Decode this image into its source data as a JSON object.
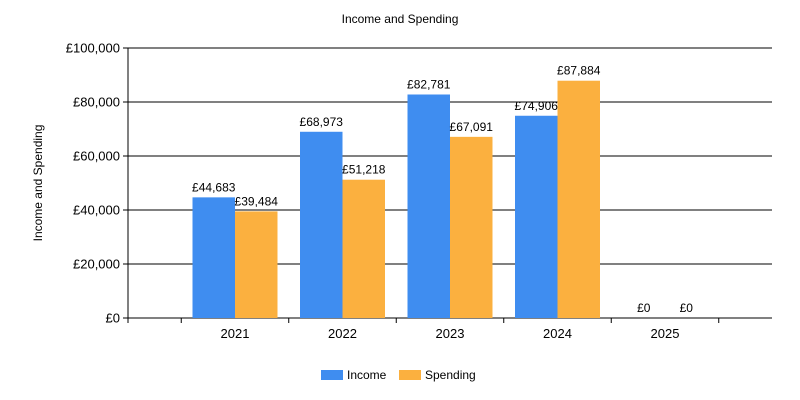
{
  "chart_data": {
    "type": "bar",
    "title": "Income and Spending",
    "xlabel": "",
    "ylabel": "Income and Spending",
    "categories": [
      "2021",
      "2022",
      "2023",
      "2024",
      "2025"
    ],
    "series": [
      {
        "name": "Income",
        "color": "#3f8df0",
        "values": [
          44683,
          68973,
          82781,
          74906,
          0
        ],
        "labels": [
          "£44,683",
          "£68,973",
          "£82,781",
          "£74,906",
          "£0"
        ]
      },
      {
        "name": "Spending",
        "color": "#fbb03f",
        "values": [
          39484,
          51218,
          67091,
          87884,
          0
        ],
        "labels": [
          "£39,484",
          "£51,218",
          "£67,091",
          "£87,884",
          "£0"
        ]
      }
    ],
    "ylim": [
      0,
      100000
    ],
    "yticks": [
      0,
      20000,
      40000,
      60000,
      80000,
      100000
    ],
    "ytick_labels": [
      "£0",
      "£20,000",
      "£40,000",
      "£60,000",
      "£80,000",
      "£100,000"
    ],
    "grid": true,
    "legend_position": "bottom"
  }
}
